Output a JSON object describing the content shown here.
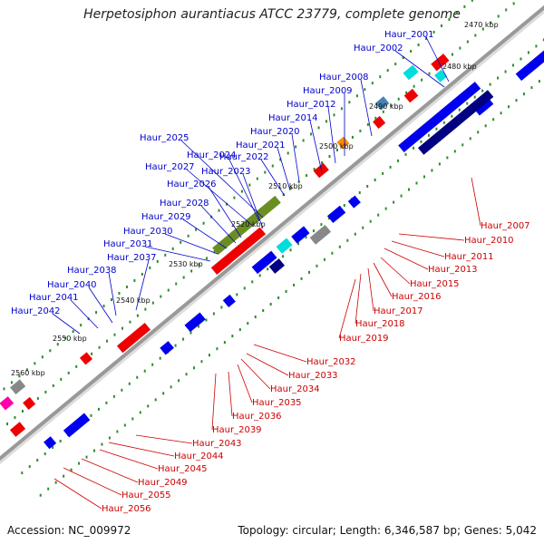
{
  "title": "Herpetosiphon aurantiacus ATCC 23779, complete genome",
  "accession": "Accession: NC_009972",
  "topology": "Topology: circular; Length: 6,346,587 bp; Genes: 5,042",
  "colors": {
    "plus_labels": "#0000cc",
    "minus_labels": "#cc0000",
    "backbone": "#999999",
    "ticks": "#2e8b2e",
    "blue": "#0000ee",
    "navy": "#000080",
    "red": "#ee0000",
    "olive": "#6b8e23",
    "orange": "#ff8c00",
    "cyan": "#00dddd",
    "magenta": "#ff00aa",
    "grey": "#888888",
    "steel": "#4682b4"
  },
  "kbp_ticks": [
    "2470 kbp",
    "2480 kbp",
    "2490 kbp",
    "2500 kbp",
    "2510 kbp",
    "2520 kbp",
    "2530 kbp",
    "2540 kbp",
    "2550 kbp",
    "2560 kbp"
  ],
  "plus_genes": [
    "Haur_2001",
    "Haur_2002",
    "Haur_2008",
    "Haur_2009",
    "Haur_2012",
    "Haur_2014",
    "Haur_2020",
    "Haur_2021",
    "Haur_2022",
    "Haur_2025",
    "Haur_2024",
    "Haur_2027",
    "Haur_2023",
    "Haur_2026",
    "Haur_2028",
    "Haur_2029",
    "Haur_2030",
    "Haur_2031",
    "Haur_2037",
    "Haur_2038",
    "Haur_2040",
    "Haur_2041",
    "Haur_2042"
  ],
  "minus_genes": [
    "Haur_2007",
    "Haur_2010",
    "Haur_2011",
    "Haur_2013",
    "Haur_2015",
    "Haur_2016",
    "Haur_2017",
    "Haur_2018",
    "Haur_2019",
    "Haur_2032",
    "Haur_2033",
    "Haur_2034",
    "Haur_2035",
    "Haur_2036",
    "Haur_2039",
    "Haur_2043",
    "Haur_2044",
    "Haur_2045",
    "Haur_2049",
    "Haur_2055",
    "Haur_2056"
  ]
}
